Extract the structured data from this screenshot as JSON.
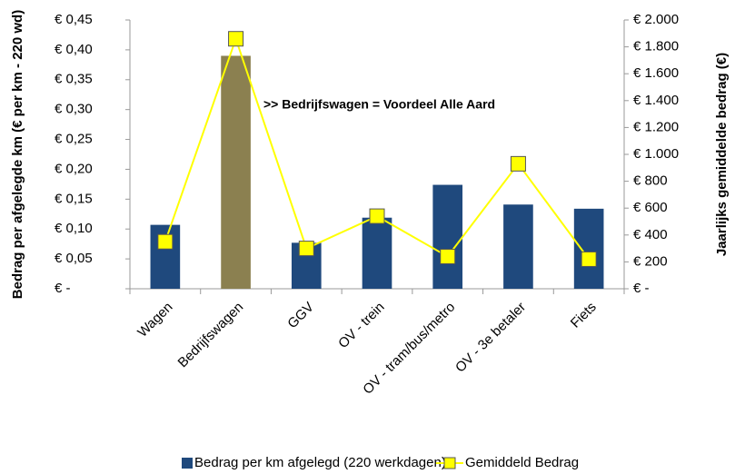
{
  "chart_data": {
    "type": "bar",
    "categories": [
      "Wagen",
      "Bedrijfswagen",
      "GGV",
      "OV - trein",
      "OV - tram/bus/metro",
      "OV - 3e betaler",
      "Fiets"
    ],
    "series": [
      {
        "name": "Bedrag per km afgelegd (220 werkdagen)",
        "type": "bar",
        "color": "#1f497d",
        "colors": [
          "#1f497d",
          "#8b8050",
          "#1f497d",
          "#1f497d",
          "#1f497d",
          "#1f497d",
          "#1f497d"
        ],
        "values": [
          0.107,
          0.39,
          0.077,
          0.119,
          0.174,
          0.141,
          0.134
        ]
      },
      {
        "name": "Gemiddeld Bedrag",
        "type": "line",
        "axis": "y2",
        "color": "#ffff00",
        "marker_edge": "#555555",
        "values": [
          350,
          1860,
          300,
          540,
          240,
          930,
          220
        ]
      }
    ],
    "ylabel": "Bedrag per afgelegde km (€ per km - 220 wd)",
    "y2label": "Jaarlijks gemiddelde bedrag (€)",
    "annotation": ">> Bedrijfswagen = Voordeel Alle Aard",
    "ylim": [
      0,
      0.45
    ],
    "yticks": [
      {
        "value": 0,
        "label": "€ -"
      },
      {
        "value": 0.05,
        "label": "€ 0,05"
      },
      {
        "value": 0.1,
        "label": "€ 0,10"
      },
      {
        "value": 0.15,
        "label": "€ 0,15"
      },
      {
        "value": 0.2,
        "label": "€ 0,20"
      },
      {
        "value": 0.25,
        "label": "€ 0,25"
      },
      {
        "value": 0.3,
        "label": "€ 0,30"
      },
      {
        "value": 0.35,
        "label": "€ 0,35"
      },
      {
        "value": 0.4,
        "label": "€ 0,40"
      },
      {
        "value": 0.45,
        "label": "€ 0,45"
      }
    ],
    "y2lim": [
      0,
      2000
    ],
    "y2ticks": [
      {
        "value": 0,
        "label": "€ -"
      },
      {
        "value": 200,
        "label": "€ 200"
      },
      {
        "value": 400,
        "label": "€ 400"
      },
      {
        "value": 600,
        "label": "€ 600"
      },
      {
        "value": 800,
        "label": "€ 800"
      },
      {
        "value": 1000,
        "label": "€ 1.000"
      },
      {
        "value": 1200,
        "label": "€ 1.200"
      },
      {
        "value": 1400,
        "label": "€ 1.400"
      },
      {
        "value": 1600,
        "label": "€ 1.600"
      },
      {
        "value": 1800,
        "label": "€ 1.800"
      },
      {
        "value": 2000,
        "label": "€ 2.000"
      }
    ]
  }
}
